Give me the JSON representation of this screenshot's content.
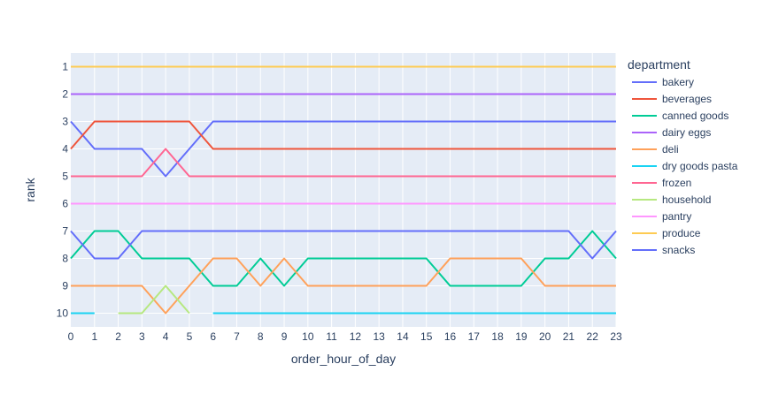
{
  "chart_data": {
    "type": "line",
    "xlabel": "order_hour_of_day",
    "ylabel": "rank",
    "x": [
      0,
      1,
      2,
      3,
      4,
      5,
      6,
      7,
      8,
      9,
      10,
      11,
      12,
      13,
      14,
      15,
      16,
      17,
      18,
      19,
      20,
      21,
      22,
      23
    ],
    "xlim": [
      0,
      23
    ],
    "ylim": [
      10.5,
      0.5
    ],
    "y_reversed": true,
    "y_ticks": [
      1,
      2,
      3,
      4,
      5,
      6,
      7,
      8,
      9,
      10
    ],
    "grid": true,
    "plot_background": "#e5ecf6",
    "legend": {
      "title": "department",
      "position": "right"
    },
    "series": [
      {
        "name": "bakery",
        "color": "#636efa",
        "values": [
          3,
          4,
          4,
          4,
          5,
          4,
          3,
          3,
          3,
          3,
          3,
          3,
          3,
          3,
          3,
          3,
          3,
          3,
          3,
          3,
          3,
          3,
          3,
          3
        ]
      },
      {
        "name": "beverages",
        "color": "#EF553B",
        "values": [
          4,
          3,
          3,
          3,
          3,
          3,
          4,
          4,
          4,
          4,
          4,
          4,
          4,
          4,
          4,
          4,
          4,
          4,
          4,
          4,
          4,
          4,
          4,
          4
        ]
      },
      {
        "name": "canned goods",
        "color": "#00cc96",
        "values": [
          8,
          7,
          7,
          8,
          8,
          8,
          9,
          9,
          8,
          9,
          8,
          8,
          8,
          8,
          8,
          8,
          9,
          9,
          9,
          9,
          8,
          8,
          7,
          8
        ]
      },
      {
        "name": "dairy eggs",
        "color": "#ab63fa",
        "values": [
          2,
          2,
          2,
          2,
          2,
          2,
          2,
          2,
          2,
          2,
          2,
          2,
          2,
          2,
          2,
          2,
          2,
          2,
          2,
          2,
          2,
          2,
          2,
          2
        ]
      },
      {
        "name": "deli",
        "color": "#FFA15A",
        "values": [
          9,
          9,
          9,
          9,
          10,
          9,
          8,
          8,
          9,
          8,
          9,
          9,
          9,
          9,
          9,
          9,
          8,
          8,
          8,
          8,
          9,
          9,
          9,
          9
        ]
      },
      {
        "name": "dry goods pasta",
        "color": "#19d3f3",
        "values": [
          10,
          10,
          null,
          null,
          null,
          null,
          10,
          10,
          10,
          10,
          10,
          10,
          10,
          10,
          10,
          10,
          10,
          10,
          10,
          10,
          10,
          10,
          10,
          10
        ]
      },
      {
        "name": "frozen",
        "color": "#FF6692",
        "values": [
          5,
          5,
          5,
          5,
          4,
          5,
          5,
          5,
          5,
          5,
          5,
          5,
          5,
          5,
          5,
          5,
          5,
          5,
          5,
          5,
          5,
          5,
          5,
          5
        ]
      },
      {
        "name": "household",
        "color": "#B6E880",
        "values": [
          null,
          null,
          10,
          10,
          9,
          10,
          null,
          null,
          null,
          null,
          null,
          null,
          null,
          null,
          null,
          null,
          null,
          null,
          null,
          null,
          null,
          null,
          null,
          null
        ]
      },
      {
        "name": "pantry",
        "color": "#FF97FF",
        "values": [
          6,
          6,
          6,
          6,
          6,
          6,
          6,
          6,
          6,
          6,
          6,
          6,
          6,
          6,
          6,
          6,
          6,
          6,
          6,
          6,
          6,
          6,
          6,
          6
        ]
      },
      {
        "name": "produce",
        "color": "#FECB52",
        "values": [
          1,
          1,
          1,
          1,
          1,
          1,
          1,
          1,
          1,
          1,
          1,
          1,
          1,
          1,
          1,
          1,
          1,
          1,
          1,
          1,
          1,
          1,
          1,
          1
        ]
      },
      {
        "name": "snacks",
        "color": "#636efa",
        "values": [
          7,
          8,
          8,
          7,
          7,
          7,
          7,
          7,
          7,
          7,
          7,
          7,
          7,
          7,
          7,
          7,
          7,
          7,
          7,
          7,
          7,
          7,
          8,
          7
        ]
      }
    ]
  }
}
